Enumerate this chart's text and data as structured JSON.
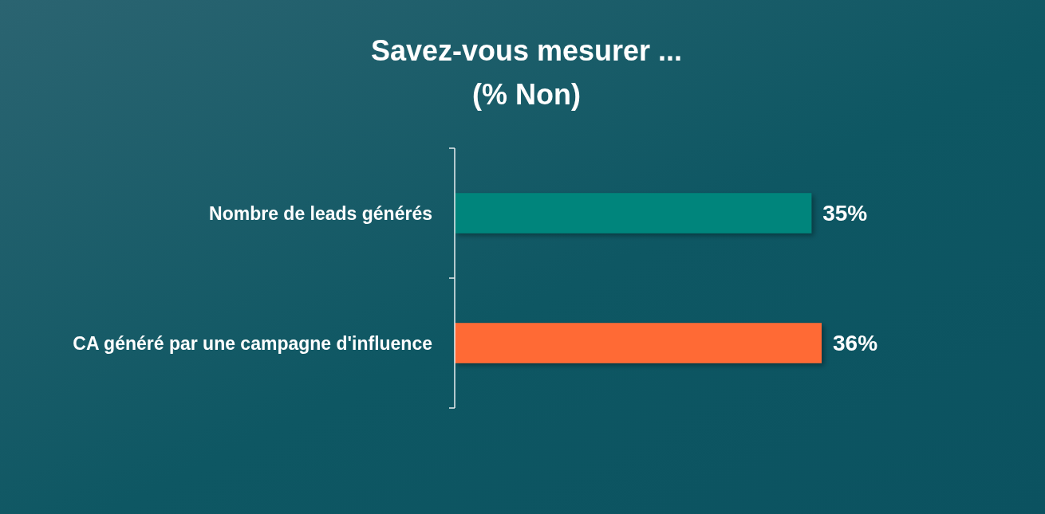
{
  "chart_data": {
    "type": "bar",
    "orientation": "horizontal",
    "title": "Savez-vous mesurer ...",
    "subtitle": "(% Non)",
    "categories": [
      "Nombre de leads générés",
      "CA généré par une campagne d'influence"
    ],
    "values": [
      35,
      36
    ],
    "colors": [
      "#00857b",
      "#ff6b35"
    ],
    "value_labels": [
      "35%",
      "36%"
    ],
    "tick_labels": "y"
  }
}
